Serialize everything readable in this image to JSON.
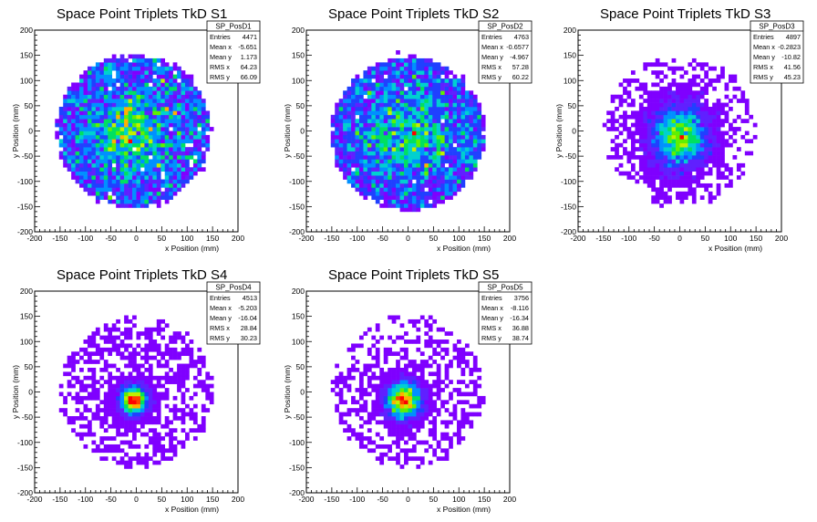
{
  "chart_data": [
    {
      "type": "heatmap",
      "title": "Space Point Triplets TkD S1",
      "xlabel": "x Position (mm)",
      "ylabel": "y Position (mm)",
      "xlim": [
        -200,
        200
      ],
      "ylim": [
        -200,
        200
      ],
      "ticks": [
        "-200",
        "-150",
        "-100",
        "-50",
        "0",
        "50",
        "100",
        "150",
        "200"
      ],
      "stats": {
        "name": "SP_PosD1",
        "rows": [
          [
            "Entries",
            "4471"
          ],
          [
            "Mean x",
            "-5.651"
          ],
          [
            "Mean y",
            "1.173"
          ],
          [
            "RMS x",
            "64.23"
          ],
          [
            "RMS y",
            "66.09"
          ]
        ]
      },
      "distribution": {
        "mean_x": -5.651,
        "mean_y": 1.173,
        "rms_x": 64.23,
        "rms_y": 66.09,
        "radius": 150,
        "shape": "uniform-disc"
      }
    },
    {
      "type": "heatmap",
      "title": "Space Point Triplets TkD S2",
      "xlabel": "x Position (mm)",
      "ylabel": "y Position (mm)",
      "xlim": [
        -200,
        200
      ],
      "ylim": [
        -200,
        200
      ],
      "ticks": [
        "-200",
        "-150",
        "-100",
        "-50",
        "0",
        "50",
        "100",
        "150",
        "200"
      ],
      "stats": {
        "name": "SP_PosD2",
        "rows": [
          [
            "Entries",
            "4763"
          ],
          [
            "Mean x",
            "-0.6577"
          ],
          [
            "Mean y",
            "-4.967"
          ],
          [
            "RMS x",
            "57.28"
          ],
          [
            "RMS y",
            "60.22"
          ]
        ]
      },
      "distribution": {
        "mean_x": -0.6577,
        "mean_y": -4.967,
        "rms_x": 57.28,
        "rms_y": 60.22,
        "radius": 150,
        "shape": "uniform-disc"
      }
    },
    {
      "type": "heatmap",
      "title": "Space Point Triplets TkD S3",
      "xlabel": "x Position (mm)",
      "ylabel": "y Position (mm)",
      "xlim": [
        -200,
        200
      ],
      "ylim": [
        -200,
        200
      ],
      "ticks": [
        "-200",
        "-150",
        "-100",
        "-50",
        "0",
        "50",
        "100",
        "150",
        "200"
      ],
      "stats": {
        "name": "SP_PosD3",
        "rows": [
          [
            "Entries",
            "4897"
          ],
          [
            "Mean x",
            "-0.2823"
          ],
          [
            "Mean y",
            "-10.82"
          ],
          [
            "RMS x",
            "41.56"
          ],
          [
            "RMS y",
            "45.23"
          ]
        ]
      },
      "distribution": {
        "mean_x": -0.2823,
        "mean_y": -10.82,
        "rms_x": 41.56,
        "rms_y": 45.23,
        "radius": 150,
        "shape": "peaked"
      }
    },
    {
      "type": "heatmap",
      "title": "Space Point Triplets TkD S4",
      "xlabel": "x Position (mm)",
      "ylabel": "y Position (mm)",
      "xlim": [
        -200,
        200
      ],
      "ylim": [
        -200,
        200
      ],
      "ticks": [
        "-200",
        "-150",
        "-100",
        "-50",
        "0",
        "50",
        "100",
        "150",
        "200"
      ],
      "stats": {
        "name": "SP_PosD4",
        "rows": [
          [
            "Entries",
            "4513"
          ],
          [
            "Mean x",
            "-5.203"
          ],
          [
            "Mean y",
            "-16.04"
          ],
          [
            "RMS x",
            "28.84"
          ],
          [
            "RMS y",
            "30.23"
          ]
        ]
      },
      "distribution": {
        "mean_x": -5.203,
        "mean_y": -16.04,
        "rms_x": 28.84,
        "rms_y": 30.23,
        "radius": 150,
        "shape": "sharply-peaked"
      }
    },
    {
      "type": "heatmap",
      "title": "Space Point Triplets TkD S5",
      "xlabel": "x Position (mm)",
      "ylabel": "y Position (mm)",
      "xlim": [
        -200,
        200
      ],
      "ylim": [
        -200,
        200
      ],
      "ticks": [
        "-200",
        "-150",
        "-100",
        "-50",
        "0",
        "50",
        "100",
        "150",
        "200"
      ],
      "stats": {
        "name": "SP_PosD5",
        "rows": [
          [
            "Entries",
            "3756"
          ],
          [
            "Mean x",
            "-8.116"
          ],
          [
            "Mean y",
            "-16.34"
          ],
          [
            "RMS x",
            "36.88"
          ],
          [
            "RMS y",
            "38.74"
          ]
        ]
      },
      "distribution": {
        "mean_x": -8.116,
        "mean_y": -16.34,
        "rms_x": 36.88,
        "rms_y": 38.74,
        "radius": 150,
        "shape": "sharply-peaked"
      }
    }
  ],
  "colors": {
    "palette": [
      "#7f00ff",
      "#6020ff",
      "#2040ff",
      "#0090ff",
      "#00d0d0",
      "#00e060",
      "#60f000",
      "#c0f000",
      "#ffb000",
      "#ff4000",
      "#ff0000"
    ],
    "frame": "#000000",
    "background": "#ffffff"
  }
}
